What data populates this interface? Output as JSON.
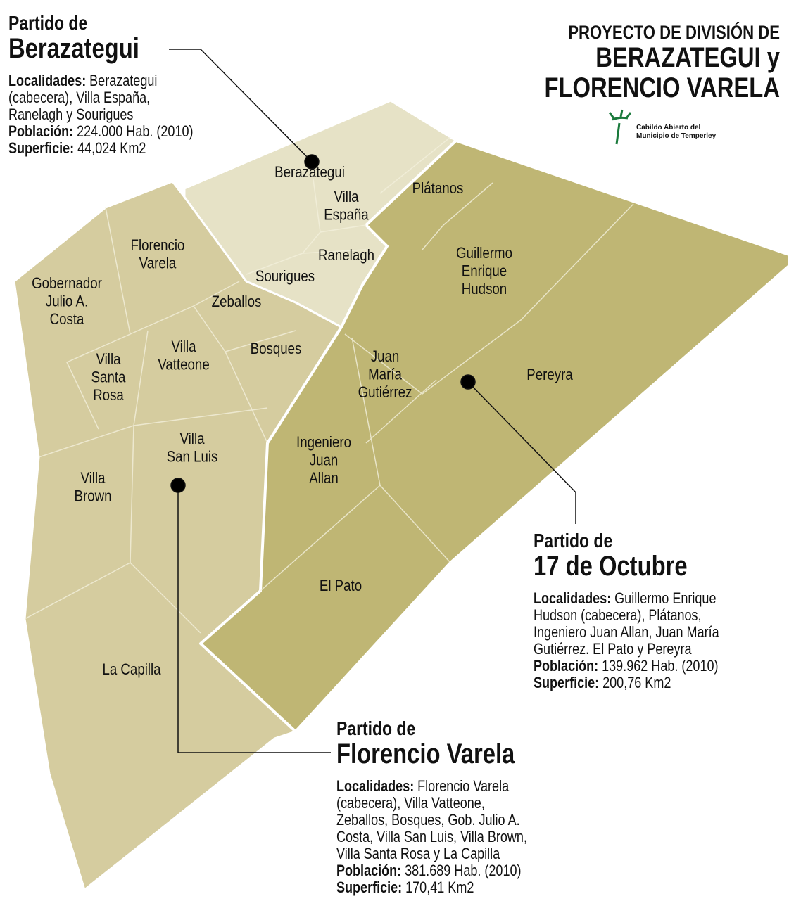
{
  "title": {
    "line1": "PROYECTO DE DIVISIÓN DE",
    "line2": "BERAZATEGUI y",
    "line3": "FLORENCIO VARELA"
  },
  "logo": {
    "line1": "Cabildo Abierto del",
    "line2": "Municipio de Temperley"
  },
  "partidos": [
    {
      "prefix": "Partido de",
      "name": "Berazategui",
      "localidades_label": "Localidades:",
      "localidades_lines": [
        "Berazategui",
        "(cabecera), Villa España,",
        "Ranelagh y Sourigues"
      ],
      "poblacion_label": "Población:",
      "poblacion": "224.000 Hab. (2010)",
      "superficie_label": "Superficie:",
      "superficie": "44,024 Km2"
    },
    {
      "prefix": "Partido de",
      "name": "17 de Octubre",
      "localidades_label": "Localidades:",
      "localidades_lines": [
        "Guillermo Enrique",
        "Hudson (cabecera), Plátanos,",
        "Ingeniero Juan Allan, Juan María",
        "Gutiérrez. El Pato y Pereyra"
      ],
      "poblacion_label": "Población:",
      "poblacion": "139.962 Hab. (2010)",
      "superficie_label": "Superficie:",
      "superficie": "200,76 Km2"
    },
    {
      "prefix": "Partido de",
      "name": "Florencio Varela",
      "localidades_label": "Localidades:",
      "localidades_lines": [
        "Florencio Varela",
        "(cabecera), Villa Vatteone,",
        "Zeballos, Bosques, Gob. Julio A.",
        "Costa, Villa San Luis, Villa Brown,",
        "Villa Santa Rosa y La Capilla"
      ],
      "poblacion_label": "Población:",
      "poblacion": "381.689 Hab. (2010)",
      "superficie_label": "Superficie:",
      "superficie": "170,41 Km2"
    }
  ],
  "localities": [
    [
      "Berazategui"
    ],
    [
      "Villa",
      "España"
    ],
    [
      "Ranelagh"
    ],
    [
      "Sourigues"
    ],
    [
      "Plátanos"
    ],
    [
      "Guillermo",
      "Enrique",
      "Hudson"
    ],
    [
      "Florencio",
      "Varela"
    ],
    [
      "Gobernador",
      "Julio A.",
      "Costa"
    ],
    [
      "Zeballos"
    ],
    [
      "Villa",
      "Vatteone"
    ],
    [
      "Bosques"
    ],
    [
      "Villa",
      "Santa",
      "Rosa"
    ],
    [
      "Juan",
      "María",
      "Gutiérrez"
    ],
    [
      "Pereyra"
    ],
    [
      "Villa",
      "San Luis"
    ],
    [
      "Ingeniero",
      "Juan",
      "Allan"
    ],
    [
      "Villa",
      "Brown"
    ],
    [
      "El Pato"
    ],
    [
      "La Capilla"
    ]
  ]
}
